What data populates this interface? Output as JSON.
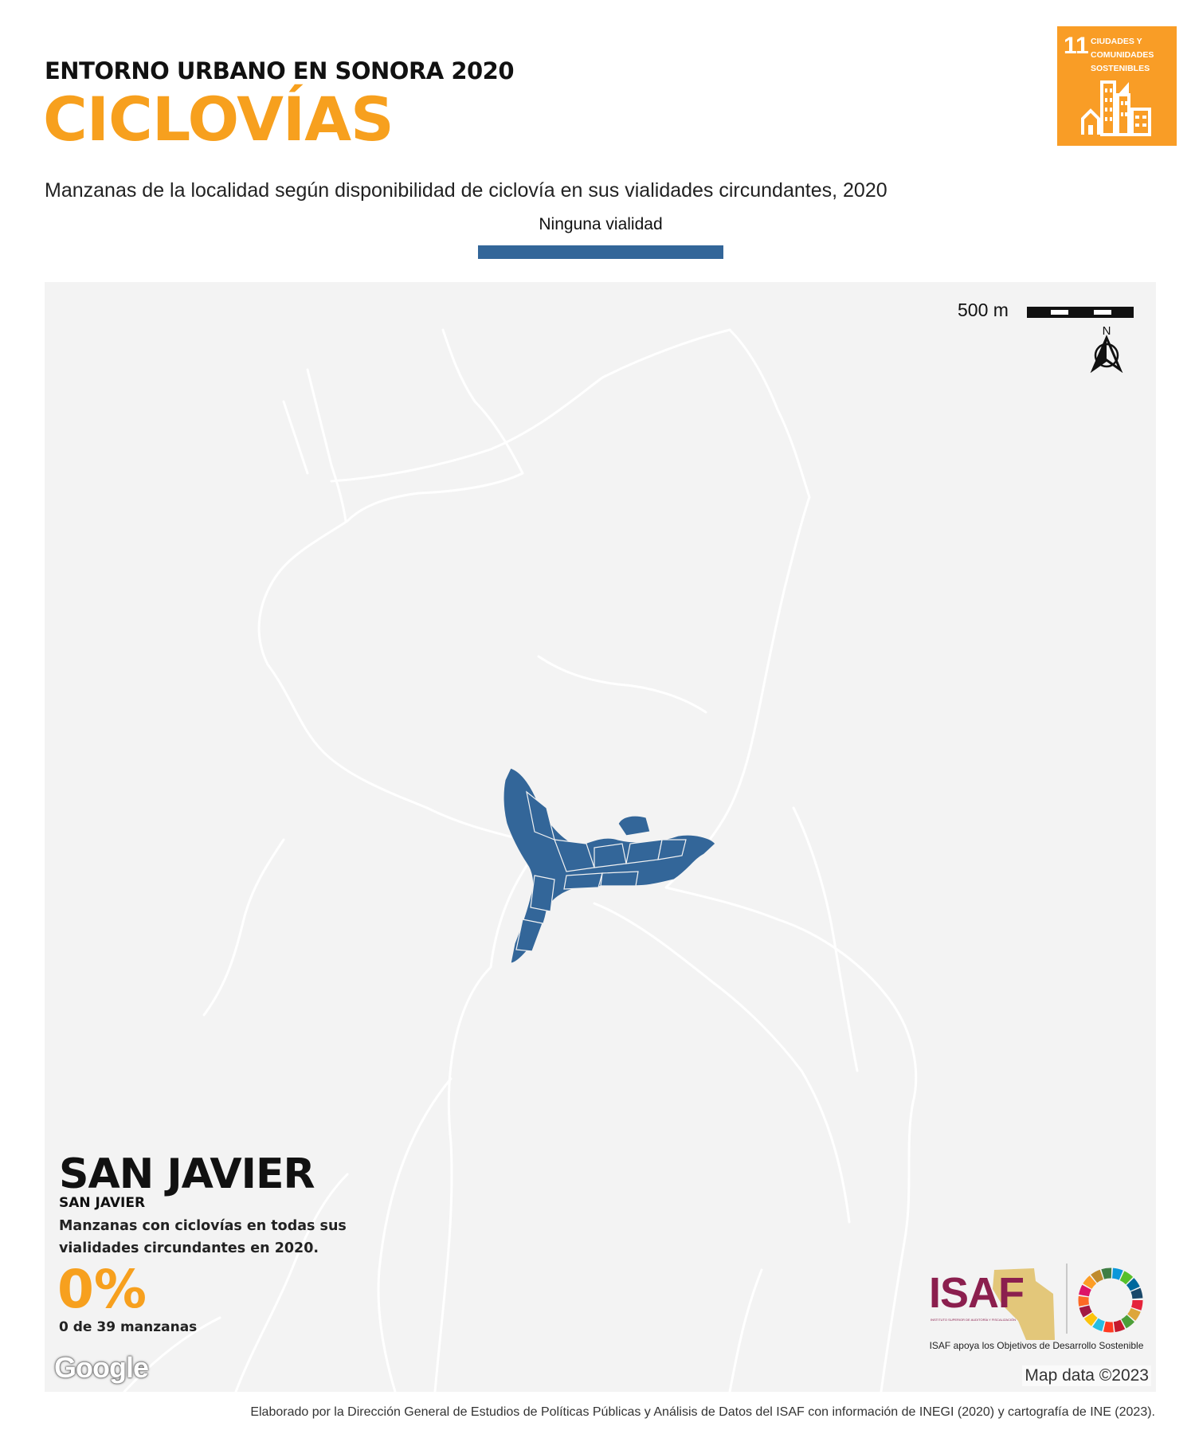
{
  "header": {
    "kicker": "ENTORNO URBANO EN SONORA 2020",
    "title": "CICLOVÍAS",
    "subtitle": "Manzanas de la localidad según disponibilidad de ciclovía en sus vialidades circundantes, 2020"
  },
  "legend": {
    "label": "Ninguna vialidad",
    "color": "#336699"
  },
  "sdg_badge": {
    "number": "11",
    "text": "CIUDADES Y COMUNIDADES SOSTENIBLES",
    "color": "#f99d26"
  },
  "map": {
    "scale_label": "500 m",
    "north_label": "N",
    "attribution": "Map data ©2023",
    "provider": "Google"
  },
  "locality": {
    "name": "SAN JAVIER",
    "municipality": "SAN JAVIER",
    "stat_description": "Manzanas con ciclovías en todas sus vialidades circundantes en 2020.",
    "percentage": "0%",
    "count_text": "0 de 39 manzanas"
  },
  "isaf": {
    "logo_text": "ISAF",
    "fine_print": "INSTITUTO SUPERIOR DE AUDITORÍA Y FISCALIZACIÓN",
    "caption": "ISAF apoya los Objetivos de Desarrollo Sostenible"
  },
  "footer": {
    "credit": "Elaborado por la Dirección General de Estudios de Políticas Públicas y Análisis de Datos del ISAF con información de INEGI (2020) y cartografía de INE (2023)."
  }
}
